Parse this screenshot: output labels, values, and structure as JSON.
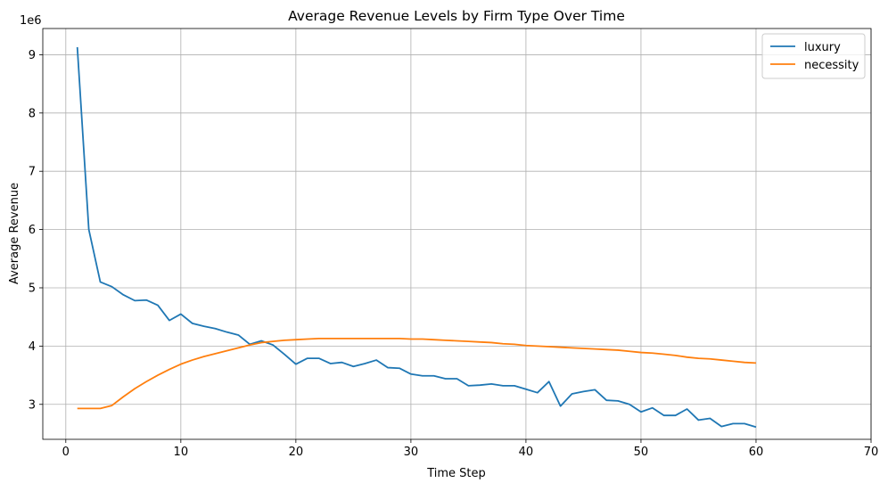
{
  "chart_data": {
    "type": "line",
    "title": "Average Revenue Levels by Firm Type Over Time",
    "xlabel": "Time Step",
    "ylabel": "Average Revenue",
    "y_offset_label": "1e6",
    "y_scale": 1000000,
    "xlim": [
      -2,
      70
    ],
    "ylim": [
      2400000,
      9450000
    ],
    "xticks": [
      0,
      10,
      20,
      30,
      40,
      50,
      60,
      70
    ],
    "yticks": [
      3,
      4,
      5,
      6,
      7,
      8,
      9
    ],
    "grid": true,
    "legend_position": "top-right",
    "x": [
      1,
      2,
      3,
      4,
      5,
      6,
      7,
      8,
      9,
      10,
      11,
      12,
      13,
      14,
      15,
      16,
      17,
      18,
      19,
      20,
      21,
      22,
      23,
      24,
      25,
      26,
      27,
      28,
      29,
      30,
      31,
      32,
      33,
      34,
      35,
      36,
      37,
      38,
      39,
      40,
      41,
      42,
      43,
      44,
      45,
      46,
      47,
      48,
      49,
      50,
      51,
      52,
      53,
      54,
      55,
      56,
      57,
      58,
      59,
      60
    ],
    "series": [
      {
        "name": "luxury",
        "color": "#1f77b4",
        "values": [
          9130000,
          6000000,
          5100000,
          5020000,
          4880000,
          4780000,
          4790000,
          4700000,
          4440000,
          4550000,
          4390000,
          4340000,
          4300000,
          4240000,
          4190000,
          4030000,
          4090000,
          4020000,
          3860000,
          3690000,
          3790000,
          3790000,
          3700000,
          3720000,
          3650000,
          3700000,
          3760000,
          3630000,
          3620000,
          3520000,
          3490000,
          3490000,
          3440000,
          3440000,
          3320000,
          3330000,
          3350000,
          3320000,
          3320000,
          3260000,
          3200000,
          3390000,
          2970000,
          3180000,
          3220000,
          3250000,
          3070000,
          3060000,
          3000000,
          2870000,
          2940000,
          2810000,
          2810000,
          2920000,
          2730000,
          2760000,
          2620000,
          2670000,
          2670000,
          2610000
        ]
      },
      {
        "name": "necessity",
        "color": "#ff7f0e",
        "values": [
          2930000,
          2930000,
          2930000,
          2980000,
          3130000,
          3270000,
          3390000,
          3500000,
          3600000,
          3690000,
          3760000,
          3820000,
          3870000,
          3920000,
          3970000,
          4020000,
          4060000,
          4080000,
          4100000,
          4110000,
          4120000,
          4130000,
          4130000,
          4130000,
          4130000,
          4130000,
          4130000,
          4130000,
          4130000,
          4120000,
          4120000,
          4110000,
          4100000,
          4090000,
          4080000,
          4070000,
          4060000,
          4040000,
          4030000,
          4010000,
          4000000,
          3990000,
          3980000,
          3970000,
          3960000,
          3950000,
          3940000,
          3930000,
          3910000,
          3890000,
          3880000,
          3860000,
          3840000,
          3810000,
          3790000,
          3780000,
          3760000,
          3740000,
          3720000,
          3710000
        ]
      }
    ]
  }
}
